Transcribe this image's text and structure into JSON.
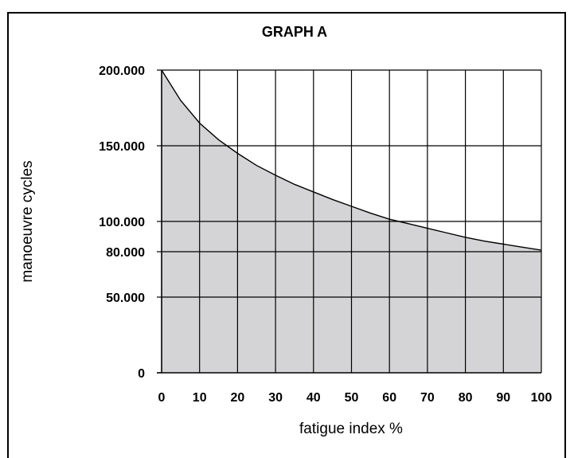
{
  "chart_data": {
    "type": "area",
    "title": "GRAPH A",
    "xlabel": "fatigue index %",
    "ylabel": "manoeuvre cycles",
    "xlim": [
      0,
      100
    ],
    "ylim": [
      0,
      200000
    ],
    "x_ticks": [
      0,
      10,
      20,
      30,
      40,
      50,
      60,
      70,
      80,
      90,
      100
    ],
    "x_tick_labels": [
      "0",
      "10",
      "20",
      "30",
      "40",
      "50",
      "60",
      "70",
      "80",
      "90",
      "100"
    ],
    "y_ticks": [
      0,
      50000,
      80000,
      100000,
      150000,
      200000
    ],
    "y_tick_labels": [
      "0",
      "50.000",
      "80.000",
      "100.000",
      "150.000",
      "200.000"
    ],
    "grid": true,
    "fill_color": "#d4d4d6",
    "series": [
      {
        "x": [
          0,
          5,
          10,
          15,
          20,
          25,
          30,
          35,
          40,
          45,
          50,
          55,
          60,
          65,
          70,
          75,
          80,
          85,
          90,
          95,
          100
        ],
        "y": [
          200000,
          180000,
          165000,
          154000,
          145000,
          137000,
          130500,
          124500,
          119500,
          114500,
          110000,
          105500,
          101500,
          98500,
          95500,
          92500,
          89500,
          87000,
          85000,
          83000,
          81000
        ]
      }
    ]
  }
}
